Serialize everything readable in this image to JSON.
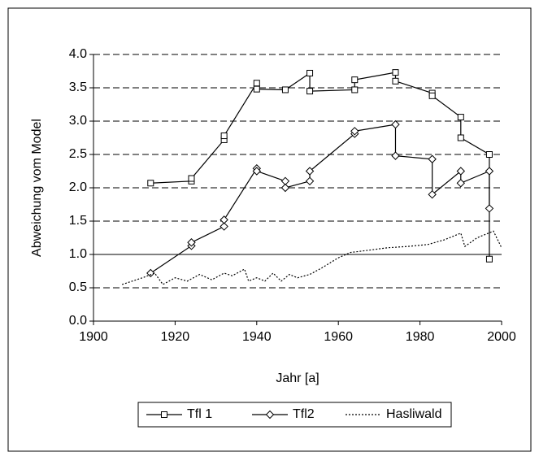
{
  "chart_data": {
    "type": "line",
    "x_label": "Jahr [a]",
    "y_label": "Abweichung vom Model",
    "xlim": [
      1900,
      2000
    ],
    "xticks": [
      1900,
      1920,
      1940,
      1960,
      1980,
      2000
    ],
    "ylim": [
      0,
      4
    ],
    "yticks": [
      {
        "value": 0,
        "label": "0.0"
      },
      {
        "value": 0.5,
        "label": "0.5"
      },
      {
        "value": 1,
        "label": "1.0"
      },
      {
        "value": 1.5,
        "label": "1.5"
      },
      {
        "value": 2,
        "label": "2.0"
      },
      {
        "value": 2.5,
        "label": "2.5"
      },
      {
        "value": 3,
        "label": "3.0"
      },
      {
        "value": 3.5,
        "label": "3.5"
      },
      {
        "value": 4,
        "label": "4.0"
      }
    ],
    "grid": true,
    "reference_line": 1,
    "legend": "bottom",
    "series": [
      {
        "name": "Tfl 1",
        "color": "#000000",
        "marker": "square",
        "x": [
          1914,
          1924,
          1924,
          1932,
          1932,
          1940,
          1940,
          1947,
          1953,
          1953,
          1964,
          1964,
          1974,
          1974,
          1983,
          1983,
          1990,
          1990,
          1997,
          1997
        ],
        "values": [
          2.07,
          2.1,
          2.14,
          2.72,
          2.78,
          3.57,
          3.48,
          3.47,
          3.72,
          3.45,
          3.47,
          3.62,
          3.73,
          3.6,
          3.42,
          3.38,
          3.06,
          2.75,
          2.5,
          0.93
        ]
      },
      {
        "name": "Tfl2",
        "color": "#000000",
        "marker": "diamond",
        "x": [
          1914,
          1924,
          1924,
          1932,
          1932,
          1940,
          1940,
          1947,
          1947,
          1953,
          1953,
          1964,
          1964,
          1974,
          1974,
          1983,
          1983,
          1990,
          1990,
          1997,
          1997
        ],
        "values": [
          0.72,
          1.13,
          1.18,
          1.42,
          1.52,
          2.29,
          2.25,
          2.1,
          2.0,
          2.1,
          2.25,
          2.81,
          2.85,
          2.95,
          2.48,
          2.43,
          1.9,
          2.25,
          2.07,
          2.25,
          1.69
        ]
      },
      {
        "name": "Hasliwald",
        "color": "#000000",
        "dash": true,
        "x": [
          1907,
          1912,
          1915,
          1917,
          1920,
          1923,
          1926,
          1929,
          1932,
          1934,
          1937,
          1938,
          1940,
          1942,
          1944,
          1946,
          1948,
          1950,
          1953,
          1956,
          1960,
          1963,
          1967,
          1972,
          1977,
          1982,
          1986,
          1990,
          1991,
          1994,
          1998,
          2000
        ],
        "values": [
          0.55,
          0.65,
          0.72,
          0.55,
          0.65,
          0.6,
          0.7,
          0.62,
          0.72,
          0.68,
          0.78,
          0.6,
          0.65,
          0.6,
          0.72,
          0.6,
          0.7,
          0.65,
          0.7,
          0.8,
          0.95,
          1.03,
          1.06,
          1.1,
          1.12,
          1.15,
          1.22,
          1.32,
          1.12,
          1.25,
          1.35,
          1.1
        ]
      }
    ]
  }
}
